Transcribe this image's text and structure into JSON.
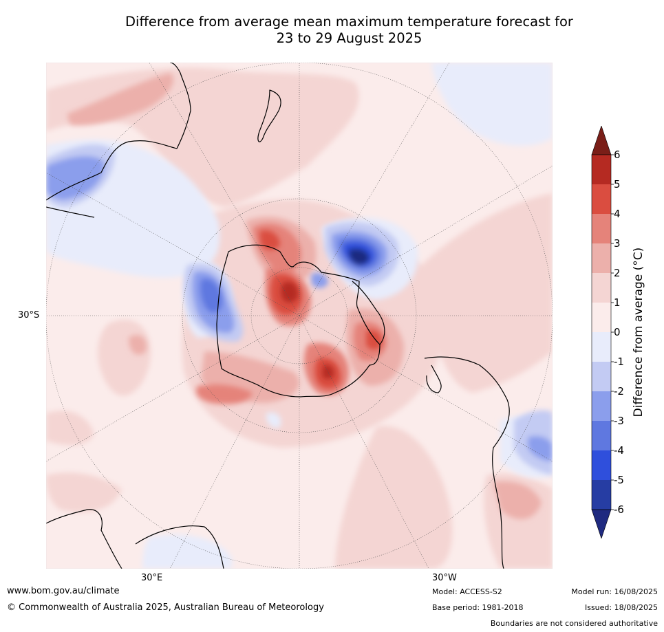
{
  "title_line1": "Difference from average mean maximum temperature forecast for",
  "title_line2": "23 to 29 August 2025",
  "map": {
    "projection": "south-polar-stereographic",
    "lat_label": "30°S",
    "lon_label_left": "30°E",
    "lon_label_right": "30°W",
    "regions_visible": [
      "Antarctica",
      "Australia",
      "New Zealand",
      "South America",
      "Southern Africa"
    ]
  },
  "colorbar": {
    "title": "Difference from average (°C)",
    "tick_labels": [
      "6",
      "5",
      "4",
      "3",
      "2",
      "1",
      "0",
      "-1",
      "-2",
      "-3",
      "-4",
      "-5",
      "-6"
    ],
    "bins": [
      {
        "range": [
          -6,
          -5
        ],
        "color": "#263da3"
      },
      {
        "range": [
          -5,
          -4
        ],
        "color": "#2f4fdc"
      },
      {
        "range": [
          -4,
          -3
        ],
        "color": "#5f78e0"
      },
      {
        "range": [
          -3,
          -2
        ],
        "color": "#8b9eec"
      },
      {
        "range": [
          -2,
          -1
        ],
        "color": "#c3cbf3"
      },
      {
        "range": [
          -1,
          0
        ],
        "color": "#e8ecfb"
      },
      {
        "range": [
          0,
          1
        ],
        "color": "#fbeceb"
      },
      {
        "range": [
          1,
          2
        ],
        "color": "#f4d5d3"
      },
      {
        "range": [
          2,
          3
        ],
        "color": "#ecb0ab"
      },
      {
        "range": [
          3,
          4
        ],
        "color": "#e5837a"
      },
      {
        "range": [
          4,
          5
        ],
        "color": "#da4d40"
      },
      {
        "range": [
          5,
          6
        ],
        "color": "#b52a22"
      }
    ],
    "under_color": "#1f2a80",
    "over_color": "#7a1e18"
  },
  "footer": {
    "url": "www.bom.gov.au/climate",
    "copyright": "© Commonwealth of Australia 2025, Australian Bureau of Meteorology",
    "model": "Model: ACCESS-S2",
    "base_period": "Base period: 1981-2018",
    "model_run": "Model run: 16/08/2025",
    "issued": "Issued: 18/08/2025",
    "disclaimer": "Boundaries are not considered authoritative"
  }
}
